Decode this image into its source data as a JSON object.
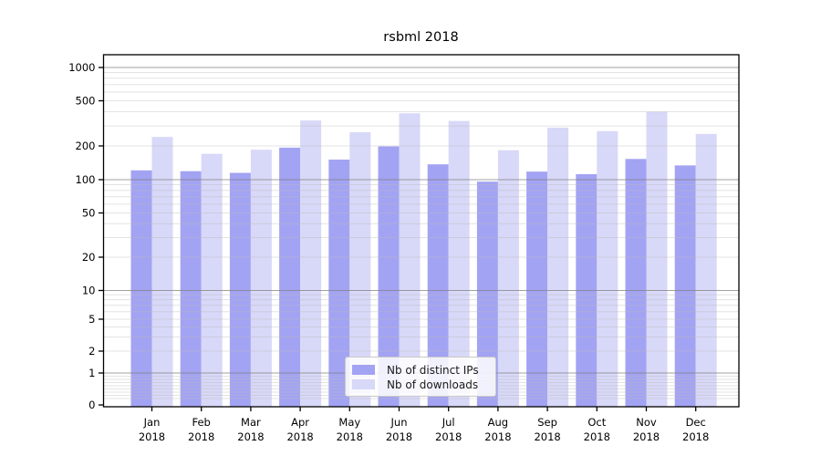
{
  "chart_data": {
    "type": "bar",
    "title": "rsbml 2018",
    "scale": "symlog",
    "grid": "horizontal, log major+minor, drawn over bars",
    "legend_position": "lower center",
    "categories": [
      {
        "month": "Jan",
        "year": "2018"
      },
      {
        "month": "Feb",
        "year": "2018"
      },
      {
        "month": "Mar",
        "year": "2018"
      },
      {
        "month": "Apr",
        "year": "2018"
      },
      {
        "month": "May",
        "year": "2018"
      },
      {
        "month": "Jun",
        "year": "2018"
      },
      {
        "month": "Jul",
        "year": "2018"
      },
      {
        "month": "Aug",
        "year": "2018"
      },
      {
        "month": "Sep",
        "year": "2018"
      },
      {
        "month": "Oct",
        "year": "2018"
      },
      {
        "month": "Nov",
        "year": "2018"
      },
      {
        "month": "Dec",
        "year": "2018"
      }
    ],
    "series": [
      {
        "name": "Nb of distinct IPs",
        "color": "#a3a3f3",
        "values": [
          121,
          119,
          115,
          193,
          151,
          198,
          137,
          96,
          118,
          112,
          153,
          134
        ]
      },
      {
        "name": "Nb of downloads",
        "color": "#d8d8f8",
        "values": [
          240,
          170,
          185,
          335,
          264,
          388,
          332,
          183,
          290,
          270,
          400,
          255
        ]
      }
    ],
    "yticks": [
      1000,
      500,
      200,
      100,
      50,
      20,
      10,
      5,
      2,
      1,
      0
    ],
    "ylim": [
      0,
      1300
    ],
    "xlabel": "",
    "ylabel": ""
  }
}
